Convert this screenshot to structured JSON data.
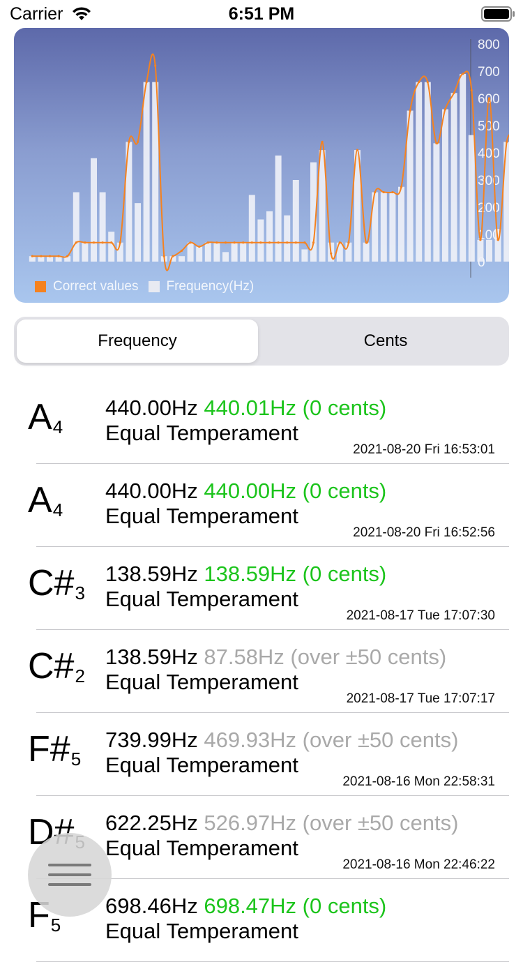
{
  "status_bar": {
    "carrier": "Carrier",
    "time": "6:51 PM"
  },
  "chart": {
    "legend": [
      {
        "label": "Correct values",
        "color": "#f5821f"
      },
      {
        "label": "Frequency(Hz)",
        "color": "#e8eaf2"
      }
    ]
  },
  "chart_data": {
    "type": "bar",
    "title": "",
    "ylim": [
      0,
      800
    ],
    "yticks": [
      "0",
      "100",
      "200",
      "300",
      "400",
      "500",
      "600",
      "700",
      "800"
    ],
    "series": [
      {
        "name": "Frequency(Hz)",
        "type": "bar",
        "values": [
          20,
          20,
          20,
          20,
          20,
          255,
          70,
          380,
          255,
          110,
          70,
          440,
          215,
          660,
          660,
          20,
          20,
          20,
          70,
          55,
          70,
          70,
          35,
          70,
          70,
          245,
          155,
          185,
          390,
          170,
          300,
          45,
          365,
          410,
          70,
          70,
          70,
          410,
          70,
          255,
          255,
          255,
          275,
          555,
          660,
          660,
          435,
          560,
          620,
          690,
          465,
          80,
          80,
          120,
          440,
          440
        ]
      },
      {
        "name": "Correct values",
        "type": "line",
        "values": [
          20,
          20,
          20,
          20,
          20,
          70,
          70,
          70,
          70,
          70,
          70,
          440,
          440,
          660,
          720,
          20,
          20,
          40,
          70,
          55,
          70,
          70,
          70,
          70,
          70,
          70,
          70,
          70,
          70,
          70,
          70,
          70,
          70,
          440,
          30,
          70,
          70,
          410,
          70,
          255,
          255,
          255,
          275,
          555,
          660,
          660,
          435,
          560,
          620,
          690,
          630,
          80,
          600,
          80,
          440,
          440
        ]
      }
    ]
  },
  "segmented": {
    "options": [
      "Frequency",
      "Cents"
    ],
    "selected": "Frequency"
  },
  "history": [
    {
      "note": "A",
      "octave": "4",
      "target": "440.00Hz",
      "measured": "440.01Hz (0 cents)",
      "status": "ok",
      "temperament": "Equal Temperament",
      "date": "2021-08-20 Fri 16:53:01"
    },
    {
      "note": "A",
      "octave": "4",
      "target": "440.00Hz",
      "measured": "440.00Hz (0 cents)",
      "status": "ok",
      "temperament": "Equal Temperament",
      "date": "2021-08-20 Fri 16:52:56"
    },
    {
      "note": "C#",
      "octave": "3",
      "target": "138.59Hz",
      "measured": "138.59Hz (0 cents)",
      "status": "ok",
      "temperament": "Equal Temperament",
      "date": "2021-08-17 Tue 17:07:30"
    },
    {
      "note": "C#",
      "octave": "2",
      "target": "138.59Hz",
      "measured": "87.58Hz (over ±50 cents)",
      "status": "off",
      "temperament": "Equal Temperament",
      "date": "2021-08-17 Tue 17:07:17"
    },
    {
      "note": "F#",
      "octave": "5",
      "target": "739.99Hz",
      "measured": "469.93Hz (over ±50 cents)",
      "status": "off",
      "temperament": "Equal Temperament",
      "date": "2021-08-16 Mon 22:58:31"
    },
    {
      "note": "D#",
      "octave": "5",
      "target": "622.25Hz",
      "measured": "526.97Hz (over ±50 cents)",
      "status": "off",
      "temperament": "Equal Temperament",
      "date": "2021-08-16 Mon 22:46:22"
    },
    {
      "note": "F",
      "octave": "5",
      "target": "698.46Hz",
      "measured": "698.47Hz (0 cents)",
      "status": "ok",
      "temperament": "Equal Temperament",
      "date": ""
    }
  ]
}
